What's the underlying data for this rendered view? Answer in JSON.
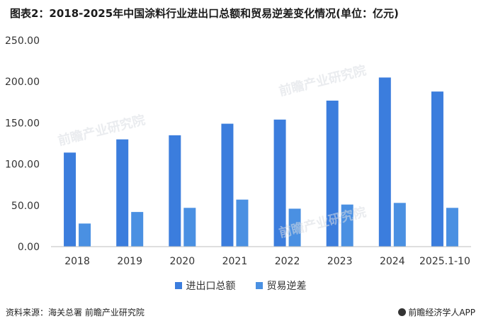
{
  "title": "图表2：2018-2025年中国涂料行业进出口总额和贸易逆差变化情况(单位：亿元)",
  "source": "资料来源：海关总署 前瞻产业研究院",
  "brand": "前瞻经济学人APP",
  "watermark": "前瞻产业研究院",
  "colors": {
    "series1": "#3b7ddd",
    "series2": "#4a90e2",
    "axis": "#bfbfbf",
    "text": "#333333"
  },
  "chart_data": {
    "type": "bar",
    "categories": [
      "2018",
      "2019",
      "2020",
      "2021",
      "2022",
      "2023",
      "2024",
      "2025.1-10"
    ],
    "series": [
      {
        "name": "进出口总额",
        "values": [
          114,
          130,
          135,
          149,
          154,
          177,
          205,
          188
        ]
      },
      {
        "name": "贸易逆差",
        "values": [
          28,
          42,
          47,
          57,
          46,
          51,
          53,
          47
        ]
      }
    ],
    "ylim": [
      0,
      250
    ],
    "yticks": [
      "0.00",
      "50.00",
      "100.00",
      "150.00",
      "200.00",
      "250.00"
    ],
    "grid": false,
    "legend": "bottom"
  }
}
